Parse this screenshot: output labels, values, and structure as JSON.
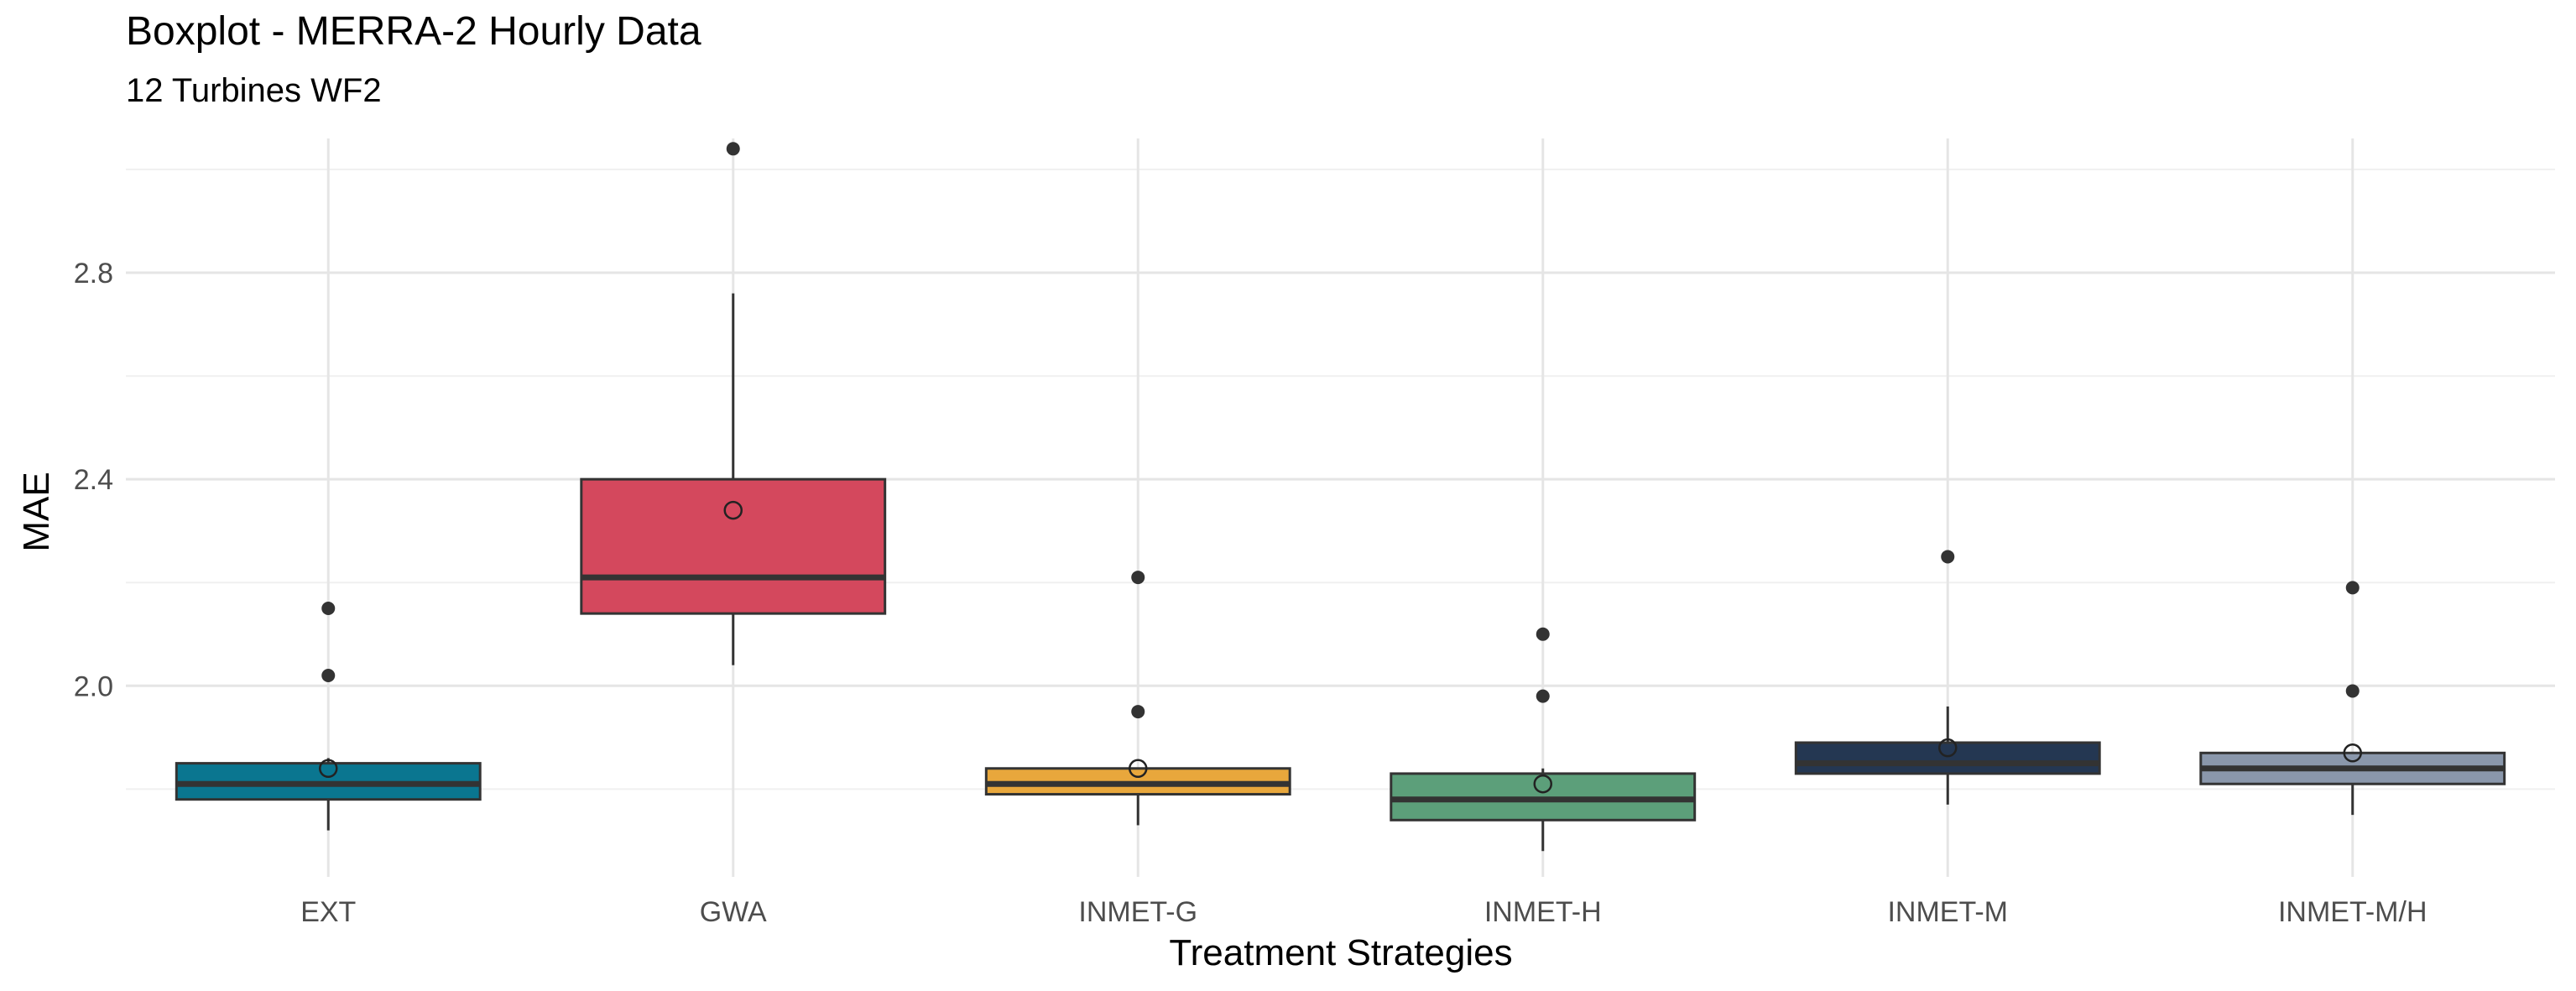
{
  "chart_data": {
    "type": "boxplot",
    "title": "Boxplot - MERRA-2 Hourly Data",
    "subtitle": "12 Turbines WF2",
    "xlabel": "Treatment Strategies",
    "ylabel": "MAE",
    "ylim": [
      1.63,
      3.06
    ],
    "yticks": [
      2.0,
      2.4,
      2.8
    ],
    "grid": true,
    "categories": [
      "EXT",
      "GWA",
      "INMET-G",
      "INMET-H",
      "INMET-M",
      "INMET-M/H"
    ],
    "colors": [
      "#0a7690",
      "#d4485d",
      "#e8a73c",
      "#5c9f7a",
      "#243752",
      "#8a97ab"
    ],
    "boxes": [
      {
        "whisker_low": 1.72,
        "q1": 1.78,
        "median": 1.81,
        "q3": 1.85,
        "whisker_high": 1.86,
        "mean": 1.84,
        "outliers": [
          2.02,
          2.15
        ]
      },
      {
        "whisker_low": 2.04,
        "q1": 2.14,
        "median": 2.21,
        "q3": 2.4,
        "whisker_high": 2.76,
        "mean": 2.34,
        "outliers": [
          3.04
        ]
      },
      {
        "whisker_low": 1.73,
        "q1": 1.79,
        "median": 1.81,
        "q3": 1.84,
        "whisker_high": 1.84,
        "mean": 1.84,
        "outliers": [
          1.95,
          2.21
        ]
      },
      {
        "whisker_low": 1.68,
        "q1": 1.74,
        "median": 1.78,
        "q3": 1.83,
        "whisker_high": 1.84,
        "mean": 1.81,
        "outliers": [
          1.98,
          2.1
        ]
      },
      {
        "whisker_low": 1.77,
        "q1": 1.83,
        "median": 1.85,
        "q3": 1.89,
        "whisker_high": 1.96,
        "mean": 1.88,
        "outliers": [
          2.25
        ]
      },
      {
        "whisker_low": 1.75,
        "q1": 1.81,
        "median": 1.84,
        "q3": 1.87,
        "whisker_high": 1.87,
        "mean": 1.87,
        "outliers": [
          1.99,
          2.19
        ]
      }
    ]
  }
}
